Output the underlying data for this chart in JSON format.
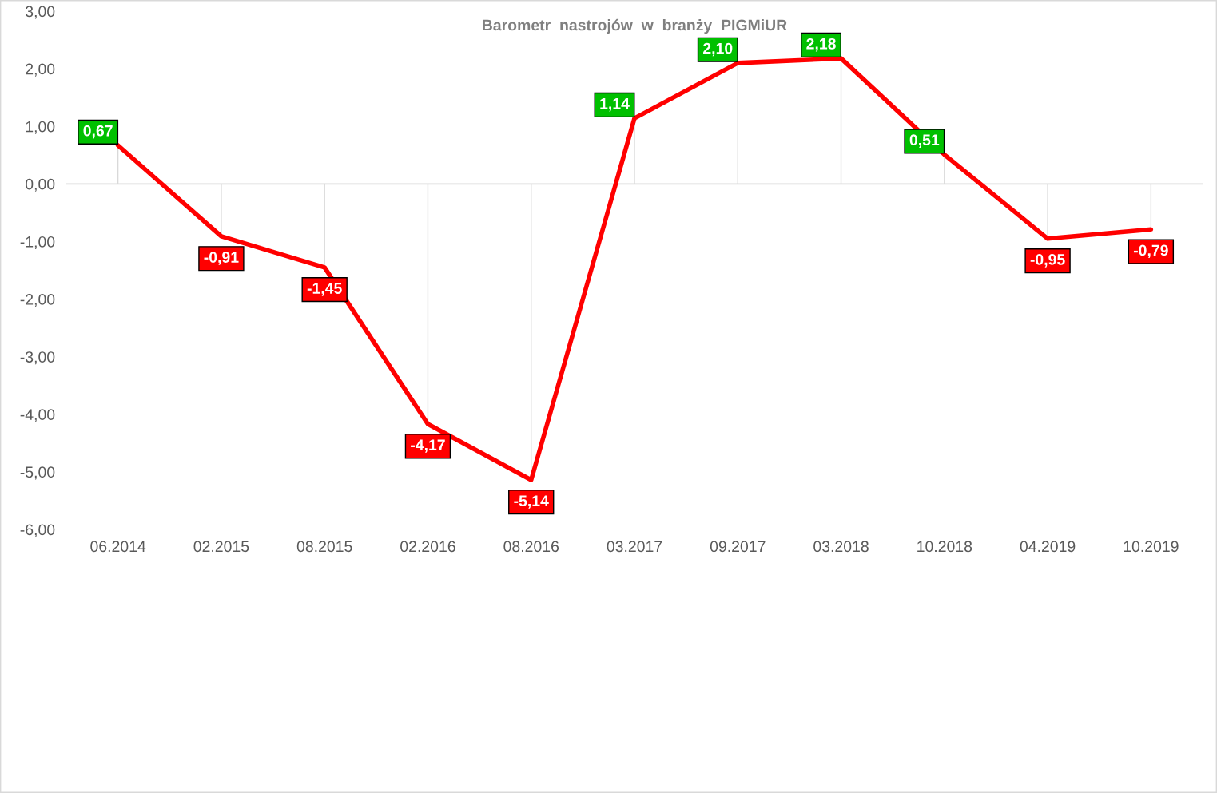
{
  "chart_data": {
    "type": "line",
    "title": "Barometr  nastrojów  w  branży  PIGMiUR",
    "categories": [
      "06.2014",
      "02.2015",
      "08.2015",
      "02.2016",
      "08.2016",
      "03.2017",
      "09.2017",
      "03.2018",
      "10.2018",
      "04.2019",
      "10.2019"
    ],
    "series": [
      {
        "color": "#ff0000",
        "values": [
          0.67,
          -0.91,
          -1.45,
          -4.17,
          -5.14,
          1.14,
          2.1,
          2.18,
          0.51,
          -0.95,
          -0.79
        ],
        "colors": [
          "#00c000",
          "#ff0000",
          "#ff0000",
          "#ff0000",
          "#ff0000",
          "#00c000",
          "#00c000",
          "#00c000",
          "#00c000",
          "#ff0000",
          "#ff0000"
        ],
        "value_labels": [
          "0,67",
          "-0,91",
          "-1,45",
          "-4,17",
          "-5,14",
          "1,14",
          "2,10",
          "2,18",
          "0,51",
          "-0,95",
          "-0,79"
        ]
      }
    ],
    "ylim": [
      -6,
      3
    ],
    "yticks": [
      {
        "value": -6,
        "label": "-6,00"
      },
      {
        "value": -5,
        "label": "-5,00"
      },
      {
        "value": -4,
        "label": "-4,00"
      },
      {
        "value": -3,
        "label": "-3,00"
      },
      {
        "value": -2,
        "label": "-2,00"
      },
      {
        "value": -1,
        "label": "-1,00"
      },
      {
        "value": 0,
        "label": "0,00"
      },
      {
        "value": 1,
        "label": "1,00"
      },
      {
        "value": 2,
        "label": "2,00"
      },
      {
        "value": 3,
        "label": "3,00"
      }
    ],
    "ref_lines": [
      {
        "axis": "y",
        "value": 0,
        "color": "#d9d9d9"
      }
    ],
    "grid": false,
    "legend": false,
    "line_style": "solid"
  }
}
